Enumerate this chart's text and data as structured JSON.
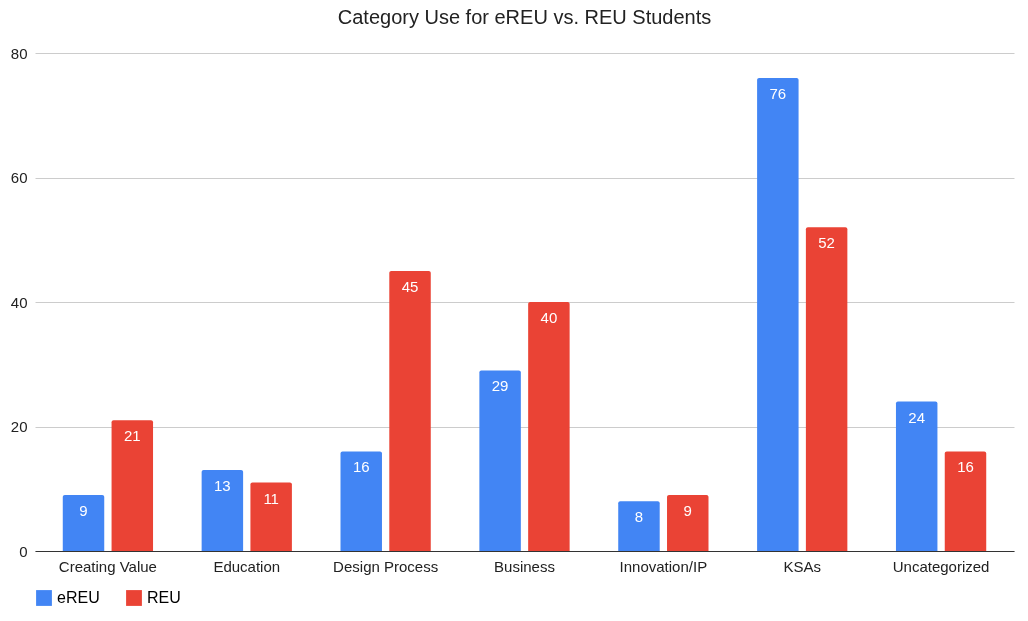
{
  "chart_data": {
    "type": "bar",
    "title": "Category Use for eREU vs. REU Students",
    "categories": [
      "Creating Value",
      "Education",
      "Design Process",
      "Business",
      "Innovation/IP",
      "KSAs",
      "Uncategorized"
    ],
    "series": [
      {
        "name": "eREU",
        "color": "#4285f4",
        "values": [
          9,
          13,
          16,
          29,
          8,
          76,
          24
        ]
      },
      {
        "name": "REU",
        "color": "#ea4335",
        "values": [
          21,
          11,
          45,
          40,
          9,
          52,
          16
        ]
      }
    ],
    "ylim": [
      0,
      80
    ],
    "yticks": [
      0,
      20,
      40,
      60,
      80
    ],
    "grid": "y",
    "legend": "bottom",
    "data_labels": true
  }
}
